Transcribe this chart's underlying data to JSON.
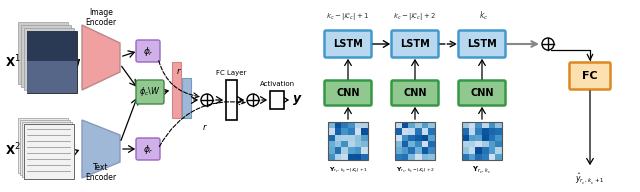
{
  "bg_color": "#ffffff",
  "fig_width": 6.4,
  "fig_height": 1.92,
  "dpi": 100,
  "left_panel": {
    "x1_label": "$\\mathbf{X}^1$",
    "x2_label": "$\\mathbf{X}^2$",
    "image_encoder_label": "Image\nEncoder",
    "text_encoder_label": "Text\nEncoder",
    "phi_r_top_label": "$\\phi_r$",
    "phi_c_W_label": "$\\phi_c\\backslash W$",
    "phi_r_bot_label": "$\\phi_r$",
    "fc_layer_label": "FC Layer",
    "activation_label": "Activation",
    "r_top_label": "$r$",
    "r_bot_label": "$r$",
    "y_label": "$\\boldsymbol{y}$",
    "image_enc_color": "#f0a0a0",
    "text_enc_color": "#a0b8d8",
    "phi_r_color": "#d0b0e8",
    "phi_c_W_color": "#90c890",
    "fc_color": "#ffffff",
    "act_color": "#ffffff",
    "pink_bar_color": "#f0a0a0",
    "blue_bar_color": "#a0b8d8"
  },
  "right_panel": {
    "lstm_color": "#b8d8f0",
    "lstm_border": "#4499cc",
    "cnn_color": "#90c890",
    "cnn_border": "#339944",
    "fc_color": "#fce0b0",
    "fc_border": "#dd8822",
    "label_top1": "$k_c - |\\mathcal{K}_c| + 1$",
    "label_top2": "$k_c - |\\mathcal{K}_c| + 2$",
    "label_top3": "$k_c$",
    "lstm_label": "LSTM",
    "cnn_label": "CNN",
    "fc_label": "FC",
    "y_label1": "$\\mathbf{Y}_{r_c,\\, k_c-|\\mathcal{K}_c|+1}$",
    "y_label2": "$\\mathbf{Y}_{r_c,\\, k_c-|\\mathcal{K}_c|+2}$",
    "y_label3": "$\\mathbf{Y}_{r_c,\\, k_c}$",
    "yhat_label": "$\\hat{y}_{r_c,\\, k_c+1}$"
  }
}
